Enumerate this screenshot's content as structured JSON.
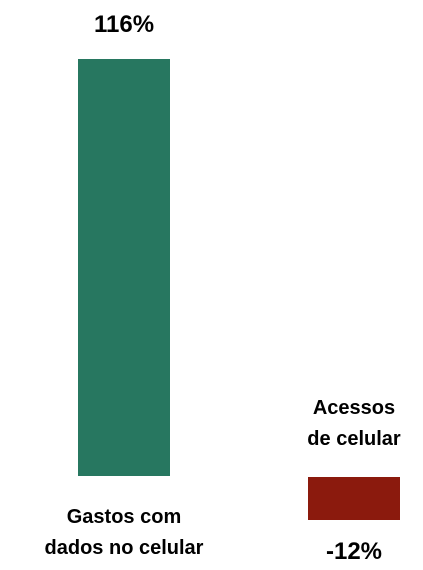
{
  "chart_data": {
    "type": "bar",
    "categories": [
      [
        "Gastos com",
        "dados no celular"
      ],
      [
        "Acessos",
        "de celular"
      ]
    ],
    "values": [
      116,
      -12
    ],
    "value_labels": [
      "116%",
      "-12%"
    ],
    "colors": [
      "#277760",
      "#8B1A0D"
    ],
    "grid": false,
    "legend": "none"
  }
}
